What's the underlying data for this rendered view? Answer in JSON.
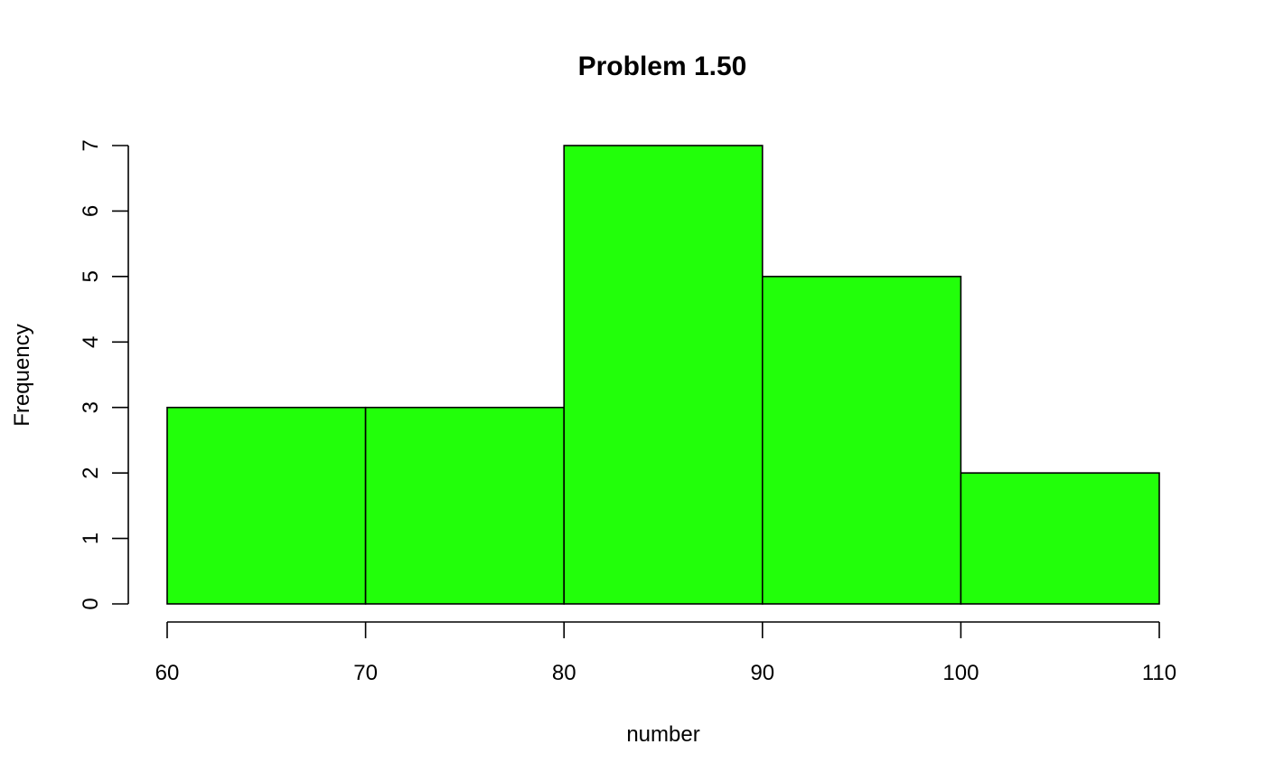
{
  "chart_data": {
    "type": "bar",
    "title": "Problem 1.50",
    "xlabel": "number",
    "ylabel": "Frequency",
    "bins": [
      {
        "start": 60,
        "end": 70,
        "value": 3
      },
      {
        "start": 70,
        "end": 80,
        "value": 3
      },
      {
        "start": 80,
        "end": 90,
        "value": 7
      },
      {
        "start": 90,
        "end": 100,
        "value": 5
      },
      {
        "start": 100,
        "end": 110,
        "value": 2
      }
    ],
    "xlim": [
      60,
      110
    ],
    "ylim": [
      0,
      7
    ],
    "x_ticks": [
      "60",
      "70",
      "80",
      "90",
      "100",
      "110"
    ],
    "y_ticks": [
      "0",
      "1",
      "2",
      "3",
      "4",
      "5",
      "6",
      "7"
    ],
    "bar_color": "#22ff0a",
    "grid": false,
    "legend": "none"
  }
}
